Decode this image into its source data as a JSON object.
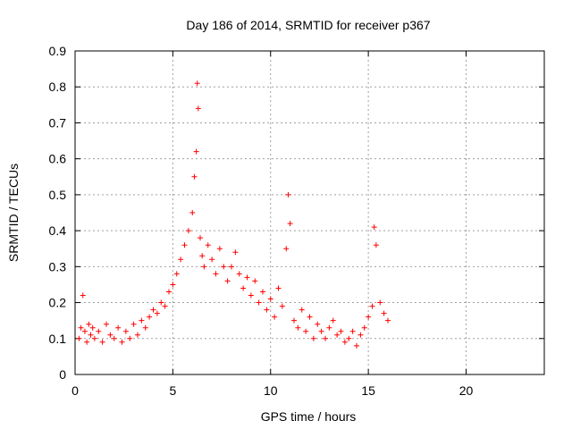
{
  "chart_data": {
    "type": "scatter",
    "title": "Day 186 of 2014, SRMTID for receiver p367",
    "xlabel": "GPS time / hours",
    "ylabel": "SRMTID / TECUs",
    "xlim": [
      0,
      24
    ],
    "ylim": [
      0,
      0.9
    ],
    "xticks": [
      0,
      5,
      10,
      15,
      20
    ],
    "yticks": [
      0,
      0.1,
      0.2,
      0.3,
      0.4,
      0.5,
      0.6,
      0.7,
      0.8,
      0.9
    ],
    "grid": true,
    "marker": "+",
    "color": "#ff0000",
    "series": [
      {
        "name": "SRMTID",
        "x": [
          0.2,
          0.3,
          0.4,
          0.5,
          0.6,
          0.7,
          0.8,
          0.9,
          1.0,
          1.2,
          1.4,
          1.6,
          1.8,
          2.0,
          2.2,
          2.4,
          2.6,
          2.8,
          3.0,
          3.2,
          3.4,
          3.6,
          3.8,
          4.0,
          4.2,
          4.4,
          4.6,
          4.8,
          5.0,
          5.2,
          5.4,
          5.6,
          5.8,
          6.0,
          6.1,
          6.2,
          6.25,
          6.3,
          6.4,
          6.5,
          6.6,
          6.8,
          7.0,
          7.2,
          7.4,
          7.6,
          7.8,
          8.0,
          8.2,
          8.4,
          8.6,
          8.8,
          9.0,
          9.2,
          9.4,
          9.6,
          9.8,
          10.0,
          10.2,
          10.4,
          10.6,
          10.8,
          10.9,
          11.0,
          11.2,
          11.4,
          11.6,
          11.8,
          12.0,
          12.2,
          12.4,
          12.6,
          12.8,
          13.0,
          13.2,
          13.4,
          13.6,
          13.8,
          14.0,
          14.2,
          14.4,
          14.6,
          14.8,
          15.0,
          15.2,
          15.3,
          15.4,
          15.6,
          15.8,
          16.0
        ],
        "y": [
          0.1,
          0.13,
          0.22,
          0.12,
          0.09,
          0.14,
          0.11,
          0.13,
          0.1,
          0.12,
          0.09,
          0.14,
          0.11,
          0.1,
          0.13,
          0.09,
          0.12,
          0.1,
          0.14,
          0.11,
          0.15,
          0.13,
          0.16,
          0.18,
          0.17,
          0.2,
          0.19,
          0.23,
          0.25,
          0.28,
          0.32,
          0.36,
          0.4,
          0.45,
          0.55,
          0.62,
          0.81,
          0.74,
          0.38,
          0.33,
          0.3,
          0.36,
          0.32,
          0.28,
          0.35,
          0.3,
          0.26,
          0.3,
          0.34,
          0.28,
          0.24,
          0.27,
          0.22,
          0.26,
          0.2,
          0.23,
          0.18,
          0.21,
          0.16,
          0.24,
          0.19,
          0.35,
          0.5,
          0.42,
          0.15,
          0.13,
          0.18,
          0.12,
          0.16,
          0.1,
          0.14,
          0.12,
          0.1,
          0.13,
          0.15,
          0.11,
          0.12,
          0.09,
          0.1,
          0.12,
          0.08,
          0.11,
          0.13,
          0.16,
          0.19,
          0.41,
          0.36,
          0.2,
          0.17,
          0.15
        ]
      }
    ]
  }
}
